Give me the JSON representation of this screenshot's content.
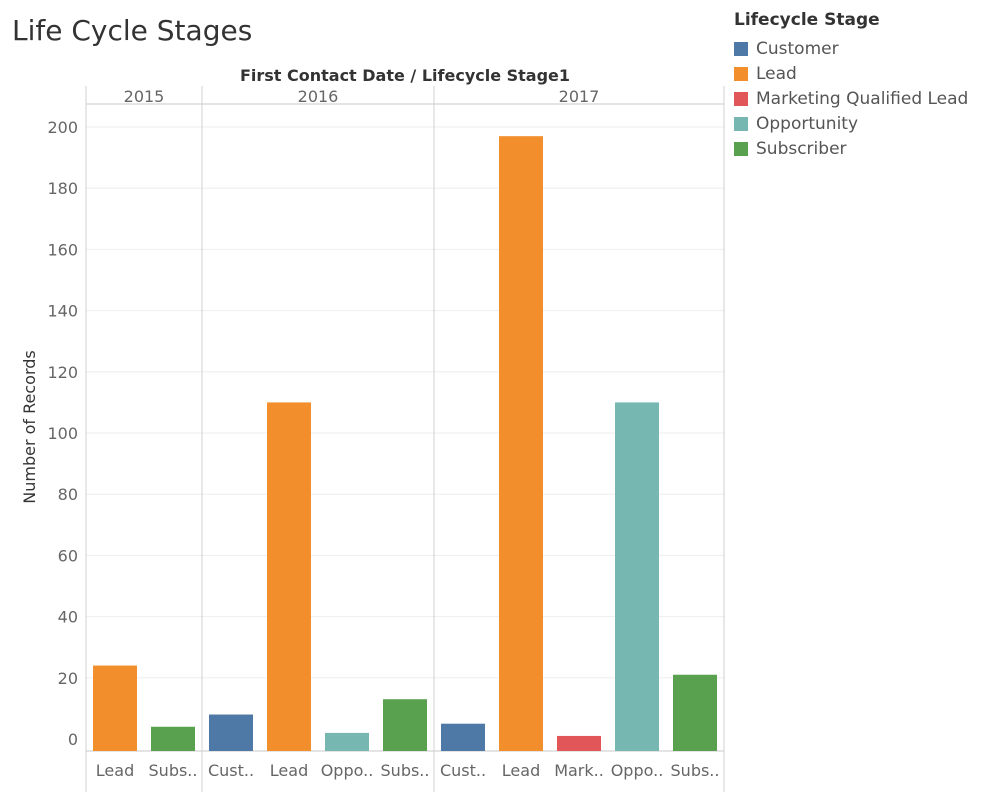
{
  "title": "Life Cycle Stages",
  "legend": {
    "title": "Lifecycle Stage",
    "items": [
      {
        "label": "Customer",
        "color": "#4e79a7"
      },
      {
        "label": "Lead",
        "color": "#f28e2b"
      },
      {
        "label": "Marketing Qualified Lead",
        "color": "#e15759"
      },
      {
        "label": "Opportunity",
        "color": "#76b7b2"
      },
      {
        "label": "Subscriber",
        "color": "#59a14f"
      }
    ]
  },
  "chart_data": {
    "type": "bar",
    "header": "First Contact Date  /  Lifecycle Stage1",
    "ylabel": "Number of Records",
    "ylim": [
      0,
      205
    ],
    "yticks": [
      0,
      20,
      40,
      60,
      80,
      100,
      120,
      140,
      160,
      180,
      200
    ],
    "grid": true,
    "legend_position": "top-right",
    "groups": [
      {
        "year": "2015",
        "bars": [
          {
            "label": "Lead",
            "stage": "Lead",
            "value": 24
          },
          {
            "label": "Subs..",
            "stage": "Subscriber",
            "value": 4
          }
        ]
      },
      {
        "year": "2016",
        "bars": [
          {
            "label": "Cust..",
            "stage": "Customer",
            "value": 8
          },
          {
            "label": "Lead",
            "stage": "Lead",
            "value": 110
          },
          {
            "label": "Oppo..",
            "stage": "Opportunity",
            "value": 2
          },
          {
            "label": "Subs..",
            "stage": "Subscriber",
            "value": 13
          }
        ]
      },
      {
        "year": "2017",
        "bars": [
          {
            "label": "Cust..",
            "stage": "Customer",
            "value": 5
          },
          {
            "label": "Lead",
            "stage": "Lead",
            "value": 197
          },
          {
            "label": "Mark..",
            "stage": "Marketing Qualified Lead",
            "value": 1
          },
          {
            "label": "Oppo..",
            "stage": "Opportunity",
            "value": 110
          },
          {
            "label": "Subs..",
            "stage": "Subscriber",
            "value": 21
          }
        ]
      }
    ]
  }
}
